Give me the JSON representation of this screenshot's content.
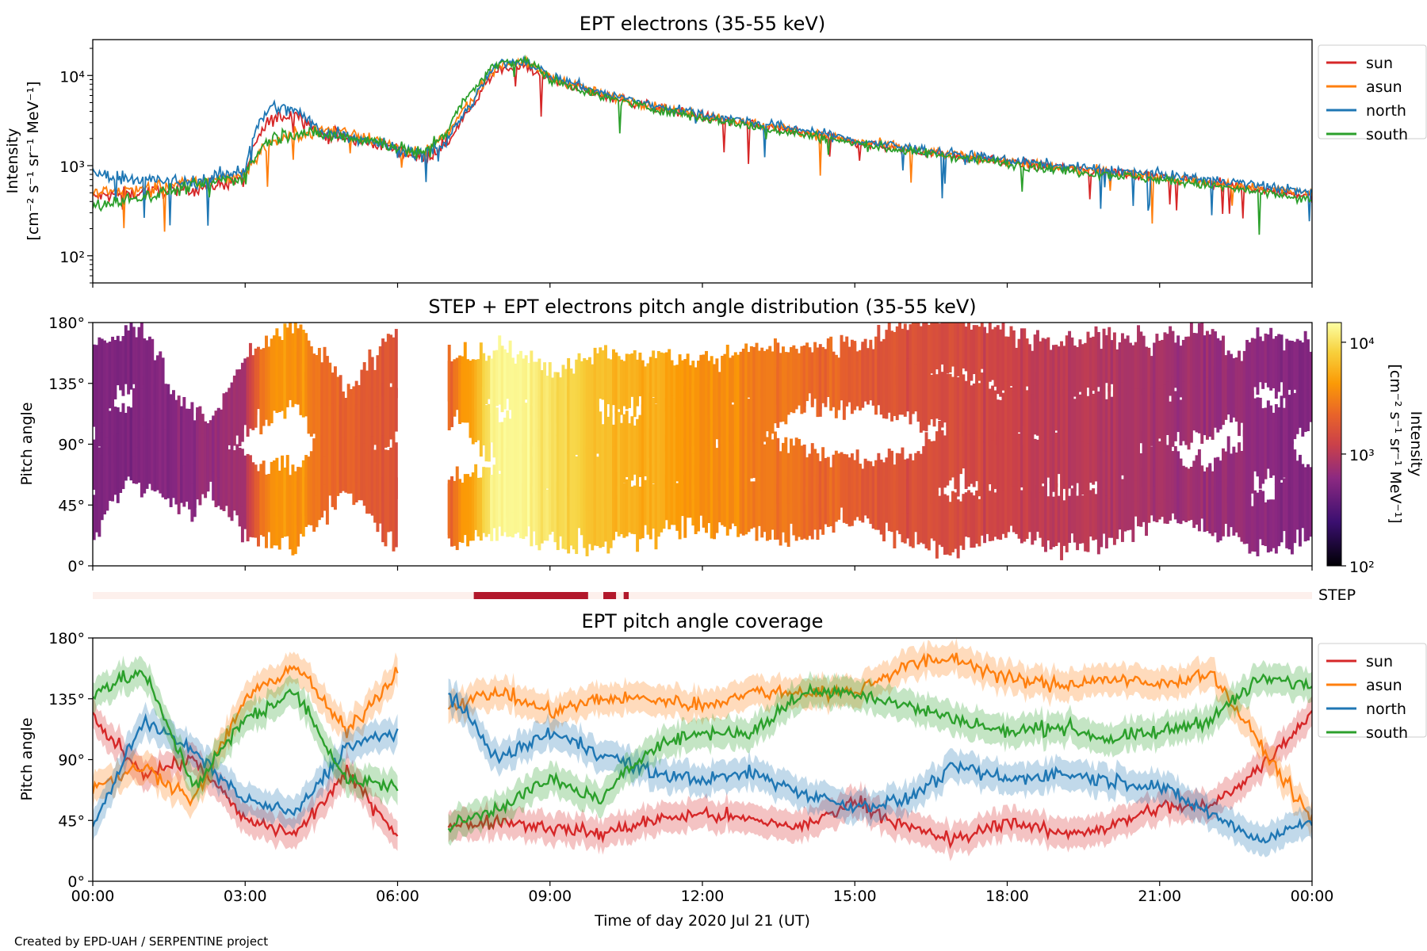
{
  "credit": "Created by EPD-UAH / SERPENTINE project",
  "xlabel": "Time of day 2020 Jul 21 (UT)",
  "xticks": [
    "00:00",
    "03:00",
    "06:00",
    "09:00",
    "12:00",
    "15:00",
    "18:00",
    "21:00",
    "00:00"
  ],
  "colors": {
    "sun": "#d62728",
    "asun": "#ff7f0e",
    "north": "#1f77b4",
    "south": "#2ca02c",
    "step_bar": "#b2182b",
    "step_bg": "#fdf0ec"
  },
  "chart_data": [
    {
      "type": "line",
      "title": "EPT electrons (35-55 keV)",
      "ylabel": "Intensity [cm$^{-2}$ s$^{-1}$ sr$^{-1}$ MeV$^{-1}$]",
      "ylabel_line1": "Intensity",
      "ylabel_line2": "[cm⁻² s⁻¹ sr⁻¹ MeV⁻¹]",
      "yscale": "log",
      "ylim": [
        50,
        25000
      ],
      "yticks": [
        "10²",
        "10³",
        "10⁴"
      ],
      "xlim_hours": [
        0,
        24
      ],
      "legend": "outside right",
      "series": [
        {
          "name": "sun",
          "color": "#d62728",
          "x": [
            0,
            1,
            2,
            3,
            3.5,
            4,
            4.5,
            5,
            5.5,
            6,
            6.5,
            7,
            7.5,
            8,
            8.5,
            9,
            10,
            11,
            12,
            13,
            14,
            15,
            16,
            17,
            18,
            19,
            20,
            21,
            22,
            23,
            24
          ],
          "values": [
            450,
            500,
            550,
            700,
            3200,
            3800,
            2200,
            2000,
            1800,
            1500,
            1200,
            1800,
            4500,
            12000,
            12500,
            9000,
            6000,
            4500,
            3500,
            2800,
            2300,
            1800,
            1500,
            1300,
            1100,
            950,
            850,
            750,
            650,
            550,
            450
          ]
        },
        {
          "name": "asun",
          "color": "#ff7f0e",
          "x": [
            0,
            1,
            2,
            3,
            3.5,
            4,
            4.5,
            5,
            5.5,
            6,
            6.5,
            7,
            7.5,
            8,
            8.5,
            9,
            10,
            11,
            12,
            13,
            14,
            15,
            16,
            17,
            18,
            19,
            20,
            21,
            22,
            23,
            24
          ],
          "values": [
            500,
            550,
            650,
            800,
            1800,
            2200,
            2500,
            2400,
            2000,
            1600,
            1300,
            2200,
            5500,
            13000,
            14000,
            9500,
            6200,
            4600,
            3600,
            2900,
            2400,
            1850,
            1550,
            1300,
            1100,
            950,
            850,
            750,
            650,
            550,
            500
          ]
        },
        {
          "name": "north",
          "color": "#1f77b4",
          "x": [
            0,
            1,
            2,
            3,
            3.5,
            4,
            4.5,
            5,
            5.5,
            6,
            6.5,
            7,
            7.5,
            8,
            8.5,
            9,
            10,
            11,
            12,
            13,
            14,
            15,
            16,
            17,
            18,
            19,
            20,
            21,
            22,
            23,
            24
          ],
          "values": [
            800,
            700,
            650,
            900,
            4500,
            4000,
            2400,
            2200,
            1900,
            1500,
            1300,
            1900,
            5000,
            13500,
            14500,
            9800,
            6400,
            4700,
            3700,
            3000,
            2500,
            1900,
            1600,
            1350,
            1150,
            1000,
            900,
            800,
            700,
            600,
            500
          ]
        },
        {
          "name": "south",
          "color": "#2ca02c",
          "x": [
            0,
            1,
            2,
            3,
            3.5,
            4,
            4.5,
            5,
            5.5,
            6,
            6.5,
            7,
            7.5,
            8,
            8.5,
            9,
            10,
            11,
            12,
            13,
            14,
            15,
            16,
            17,
            18,
            19,
            20,
            21,
            22,
            23,
            24
          ],
          "values": [
            350,
            450,
            600,
            750,
            2000,
            2300,
            2200,
            2100,
            1900,
            1600,
            1300,
            2500,
            7000,
            14000,
            15000,
            9000,
            5800,
            4300,
            3400,
            2700,
            2200,
            1750,
            1450,
            1250,
            1050,
            900,
            800,
            700,
            600,
            500,
            400
          ]
        }
      ]
    },
    {
      "type": "heatmap",
      "title": "STEP + EPT electrons pitch angle distribution (35-55 keV)",
      "ylabel": "Pitch angle",
      "ylim": [
        0,
        180
      ],
      "yticks": [
        "0°",
        "45°",
        "90°",
        "135°",
        "180°"
      ],
      "colorbar_label": "Intensity [cm⁻² s⁻¹ sr⁻¹ MeV⁻¹]",
      "colorbar_label_line1": "Intensity",
      "colorbar_label_line2": "[cm⁻² s⁻¹ sr⁻¹ MeV⁻¹]",
      "colorbar_scale": "log",
      "colorbar_range": [
        100,
        15000
      ],
      "colorbar_ticks": [
        "10²",
        "10³",
        "10⁴"
      ],
      "data_gap_hours": [
        6.0,
        7.0
      ]
    },
    {
      "type": "bar",
      "label": "STEP",
      "coverage_hours": [
        [
          7.5,
          9.75
        ],
        [
          10.05,
          10.3
        ],
        [
          10.45,
          10.55
        ]
      ]
    },
    {
      "type": "line",
      "title": "EPT pitch angle coverage",
      "ylabel": "Pitch angle",
      "ylim": [
        0,
        180
      ],
      "yticks": [
        "0°",
        "45°",
        "90°",
        "135°",
        "180°"
      ],
      "legend": "outside right",
      "data_gap_hours": [
        6.0,
        7.0
      ],
      "series": [
        {
          "name": "sun",
          "color": "#d62728",
          "x": [
            0,
            1,
            2,
            3,
            4,
            5,
            6,
            7,
            8,
            9,
            10,
            11,
            12,
            13,
            14,
            15,
            16,
            17,
            18,
            19,
            20,
            21,
            22,
            23,
            24
          ],
          "values": [
            120,
            80,
            90,
            45,
            35,
            80,
            35,
            40,
            45,
            40,
            35,
            45,
            50,
            45,
            40,
            60,
            40,
            30,
            45,
            35,
            40,
            55,
            55,
            85,
            125
          ]
        },
        {
          "name": "asun",
          "color": "#ff7f0e",
          "x": [
            0,
            1,
            2,
            3,
            4,
            5,
            6,
            7,
            8,
            9,
            10,
            11,
            12,
            13,
            14,
            15,
            16,
            17,
            18,
            19,
            20,
            21,
            22,
            23,
            24
          ],
          "values": [
            70,
            85,
            60,
            135,
            160,
            110,
            155,
            130,
            140,
            125,
            135,
            135,
            130,
            140,
            140,
            140,
            160,
            165,
            150,
            145,
            150,
            145,
            155,
            100,
            45
          ]
        },
        {
          "name": "north",
          "color": "#1f77b4",
          "x": [
            0,
            1,
            2,
            3,
            4,
            5,
            6,
            7,
            8,
            9,
            10,
            11,
            12,
            13,
            14,
            15,
            16,
            17,
            18,
            19,
            20,
            21,
            22,
            23,
            24
          ],
          "values": [
            40,
            120,
            95,
            60,
            50,
            100,
            110,
            140,
            90,
            110,
            95,
            80,
            75,
            80,
            65,
            55,
            60,
            85,
            75,
            80,
            75,
            70,
            50,
            30,
            45
          ]
        },
        {
          "name": "south",
          "color": "#2ca02c",
          "x": [
            0,
            1,
            2,
            3,
            4,
            5,
            6,
            7,
            8,
            9,
            10,
            11,
            12,
            13,
            14,
            15,
            16,
            17,
            18,
            19,
            20,
            21,
            22,
            23,
            24
          ],
          "values": [
            140,
            155,
            70,
            120,
            140,
            75,
            70,
            40,
            55,
            75,
            60,
            100,
            110,
            110,
            140,
            140,
            130,
            120,
            110,
            115,
            105,
            110,
            120,
            150,
            145
          ]
        }
      ]
    }
  ]
}
